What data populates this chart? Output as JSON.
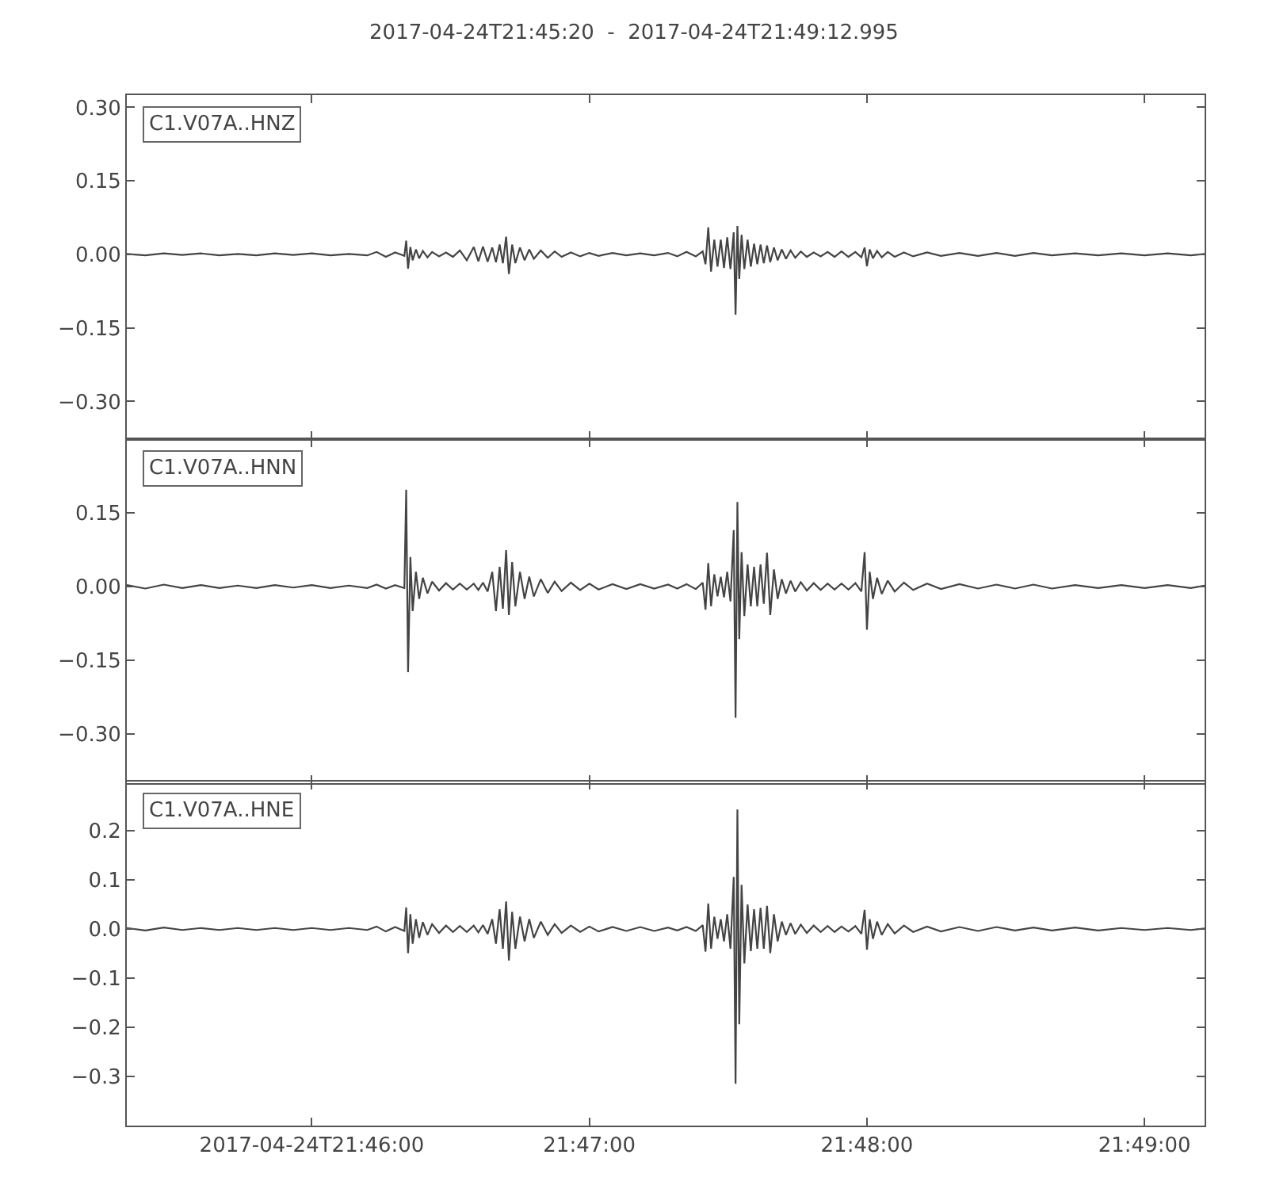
{
  "chart_data": [
    {
      "type": "line",
      "title": "2017-04-24T21:45:20  -  2017-04-24T21:49:12.995",
      "annotations": [
        "C1.V07A..HNZ"
      ],
      "x": [
        "2017-04-24T21:45:20",
        "2017-04-24T21:45:24",
        "2017-04-24T21:45:28",
        "2017-04-24T21:45:32",
        "2017-04-24T21:45:36",
        "2017-04-24T21:45:40",
        "2017-04-24T21:45:44",
        "2017-04-24T21:45:48",
        "2017-04-24T21:45:52",
        "2017-04-24T21:45:56",
        "2017-04-24T21:46:00",
        "2017-04-24T21:46:04",
        "2017-04-24T21:46:08",
        "2017-04-24T21:46:12",
        "2017-04-24T21:46:14",
        "2017-04-24T21:46:16",
        "2017-04-24T21:46:18",
        "2017-04-24T21:46:20",
        "2017-04-24T21:46:20.4",
        "2017-04-24T21:46:20.8",
        "2017-04-24T21:46:21.3",
        "2017-04-24T21:46:21.8",
        "2017-04-24T21:46:22.5",
        "2017-04-24T21:46:23.2",
        "2017-04-24T21:46:24",
        "2017-04-24T21:46:25",
        "2017-04-24T21:46:26",
        "2017-04-24T21:46:27.5",
        "2017-04-24T21:46:29",
        "2017-04-24T21:46:30.5",
        "2017-04-24T21:46:32",
        "2017-04-24T21:46:33.5",
        "2017-04-24T21:46:35",
        "2017-04-24T21:46:36",
        "2017-04-24T21:46:37",
        "2017-04-24T21:46:38",
        "2017-04-24T21:46:39",
        "2017-04-24T21:46:39.8",
        "2017-04-24T21:46:40.6",
        "2017-04-24T21:46:41.3",
        "2017-04-24T21:46:42",
        "2017-04-24T21:46:42.6",
        "2017-04-24T21:46:43.3",
        "2017-04-24T21:46:44",
        "2017-04-24T21:46:45",
        "2017-04-24T21:46:46",
        "2017-04-24T21:46:47",
        "2017-04-24T21:46:48",
        "2017-04-24T21:46:49.5",
        "2017-04-24T21:46:51",
        "2017-04-24T21:46:52.5",
        "2017-04-24T21:46:54",
        "2017-04-24T21:46:56",
        "2017-04-24T21:46:58",
        "2017-04-24T21:47:00",
        "2017-04-24T21:47:02",
        "2017-04-24T21:47:05",
        "2017-04-24T21:47:08",
        "2017-04-24T21:47:11",
        "2017-04-24T21:47:14",
        "2017-04-24T21:47:17",
        "2017-04-24T21:47:19",
        "2017-04-24T21:47:21",
        "2017-04-24T21:47:23",
        "2017-04-24T21:47:24.5",
        "2017-04-24T21:47:25.1",
        "2017-04-24T21:47:25.7",
        "2017-04-24T21:47:26.3",
        "2017-04-24T21:47:27",
        "2017-04-24T21:47:27.7",
        "2017-04-24T21:47:28.4",
        "2017-04-24T21:47:29.1",
        "2017-04-24T21:47:29.8",
        "2017-04-24T21:47:30.5",
        "2017-04-24T21:47:31.2",
        "2017-04-24T21:47:31.6",
        "2017-04-24T21:47:32",
        "2017-04-24T21:47:32.4",
        "2017-04-24T21:47:32.9",
        "2017-04-24T21:47:33.5",
        "2017-04-24T21:47:34.2",
        "2017-04-24T21:47:34.9",
        "2017-04-24T21:47:35.6",
        "2017-04-24T21:47:36.3",
        "2017-04-24T21:47:37",
        "2017-04-24T21:47:37.7",
        "2017-04-24T21:47:38.4",
        "2017-04-24T21:47:39.1",
        "2017-04-24T21:47:39.9",
        "2017-04-24T21:47:40.7",
        "2017-04-24T21:47:41.6",
        "2017-04-24T21:47:42.5",
        "2017-04-24T21:47:43.5",
        "2017-04-24T21:47:44.5",
        "2017-04-24T21:47:45.7",
        "2017-04-24T21:47:47",
        "2017-04-24T21:47:48.5",
        "2017-04-24T21:47:50",
        "2017-04-24T21:47:51.5",
        "2017-04-24T21:47:53",
        "2017-04-24T21:47:54.5",
        "2017-04-24T21:47:56",
        "2017-04-24T21:47:57.5",
        "2017-04-24T21:47:58.8",
        "2017-04-24T21:47:59.5",
        "2017-04-24T21:48:00",
        "2017-04-24T21:48:00.6",
        "2017-04-24T21:48:01.3",
        "2017-04-24T21:48:02.2",
        "2017-04-24T21:48:03.2",
        "2017-04-24T21:48:04.5",
        "2017-04-24T21:48:06",
        "2017-04-24T21:48:08",
        "2017-04-24T21:48:10",
        "2017-04-24T21:48:13",
        "2017-04-24T21:48:16",
        "2017-04-24T21:48:20",
        "2017-04-24T21:48:24",
        "2017-04-24T21:48:28",
        "2017-04-24T21:48:32",
        "2017-04-24T21:48:36",
        "2017-04-24T21:48:40",
        "2017-04-24T21:48:45",
        "2017-04-24T21:48:50",
        "2017-04-24T21:48:55",
        "2017-04-24T21:49:00",
        "2017-04-24T21:49:05",
        "2017-04-24T21:49:10",
        "2017-04-24T21:49:12.995"
      ],
      "series": [
        {
          "color": "#444444",
          "values": [
            0.001,
            -0.002,
            0.002,
            -0.001,
            0.002,
            -0.002,
            0.001,
            -0.002,
            0.002,
            -0.001,
            0.002,
            -0.002,
            0.001,
            -0.002,
            0.005,
            -0.005,
            0.004,
            -0.003,
            0.028,
            -0.029,
            0.015,
            -0.012,
            0.01,
            -0.008,
            0.007,
            -0.006,
            0.005,
            -0.004,
            0.004,
            -0.005,
            0.008,
            -0.012,
            0.015,
            -0.014,
            0.016,
            -0.015,
            0.014,
            -0.016,
            0.02,
            -0.018,
            0.036,
            -0.04,
            0.02,
            -0.018,
            0.014,
            -0.012,
            0.01,
            -0.009,
            0.008,
            -0.007,
            0.006,
            -0.005,
            0.004,
            -0.004,
            0.003,
            -0.003,
            0.003,
            -0.002,
            0.002,
            -0.002,
            0.003,
            -0.004,
            0.005,
            -0.004,
            0.006,
            -0.02,
            0.055,
            -0.035,
            0.03,
            -0.025,
            0.03,
            -0.028,
            0.035,
            -0.03,
            0.045,
            -0.123,
            0.058,
            -0.05,
            0.04,
            -0.03,
            0.03,
            -0.025,
            0.022,
            -0.02,
            0.02,
            -0.018,
            0.018,
            -0.016,
            0.014,
            -0.012,
            0.01,
            -0.009,
            0.008,
            -0.007,
            0.006,
            -0.005,
            0.004,
            -0.004,
            0.005,
            -0.005,
            0.006,
            -0.005,
            0.005,
            -0.006,
            0.014,
            -0.024,
            0.01,
            -0.008,
            0.007,
            -0.006,
            0.005,
            -0.005,
            0.004,
            -0.004,
            0.004,
            -0.003,
            0.003,
            -0.003,
            0.003,
            -0.003,
            0.003,
            -0.002,
            0.002,
            -0.002,
            0.002,
            -0.002,
            0.002,
            -0.002,
            0.001
          ]
        }
      ],
      "xlim": [
        "2017-04-24T21:45:20",
        "2017-04-24T21:49:12.995"
      ],
      "xticks": [
        {
          "value": "2017-04-24T21:46:00",
          "label": null
        },
        {
          "value": "2017-04-24T21:47:00",
          "label": null
        },
        {
          "value": "2017-04-24T21:48:00",
          "label": null
        },
        {
          "value": "2017-04-24T21:49:00",
          "label": null
        }
      ],
      "ylim": [
        -0.377,
        0.325
      ],
      "yticks": [
        {
          "value": 0.3,
          "label": "0.30"
        },
        {
          "value": 0.15,
          "label": "0.15"
        },
        {
          "value": 0,
          "label": "0.00"
        },
        {
          "value": -0.15,
          "label": "−0.15"
        },
        {
          "value": -0.3,
          "label": "−0.30"
        }
      ],
      "tick_labels": "y"
    },
    {
      "type": "line",
      "annotations": [
        "C1.V07A..HNN"
      ],
      "x": [
        "2017-04-24T21:45:20",
        "2017-04-24T21:45:24",
        "2017-04-24T21:45:28",
        "2017-04-24T21:45:32",
        "2017-04-24T21:45:36",
        "2017-04-24T21:45:40",
        "2017-04-24T21:45:44",
        "2017-04-24T21:45:48",
        "2017-04-24T21:45:52",
        "2017-04-24T21:45:56",
        "2017-04-24T21:46:00",
        "2017-04-24T21:46:04",
        "2017-04-24T21:46:08",
        "2017-04-24T21:46:12",
        "2017-04-24T21:46:14",
        "2017-04-24T21:46:16",
        "2017-04-24T21:46:18",
        "2017-04-24T21:46:20",
        "2017-04-24T21:46:20.4",
        "2017-04-24T21:46:20.8",
        "2017-04-24T21:46:21.3",
        "2017-04-24T21:46:21.8",
        "2017-04-24T21:46:22.5",
        "2017-04-24T21:46:23.2",
        "2017-04-24T21:46:24",
        "2017-04-24T21:46:25",
        "2017-04-24T21:46:26",
        "2017-04-24T21:46:27.5",
        "2017-04-24T21:46:29",
        "2017-04-24T21:46:30.5",
        "2017-04-24T21:46:32",
        "2017-04-24T21:46:33.5",
        "2017-04-24T21:46:35",
        "2017-04-24T21:46:36",
        "2017-04-24T21:46:37",
        "2017-04-24T21:46:38",
        "2017-04-24T21:46:39",
        "2017-04-24T21:46:39.8",
        "2017-04-24T21:46:40.6",
        "2017-04-24T21:46:41.3",
        "2017-04-24T21:46:42",
        "2017-04-24T21:46:42.6",
        "2017-04-24T21:46:43.3",
        "2017-04-24T21:46:44",
        "2017-04-24T21:46:45",
        "2017-04-24T21:46:46",
        "2017-04-24T21:46:47",
        "2017-04-24T21:46:48",
        "2017-04-24T21:46:49.5",
        "2017-04-24T21:46:51",
        "2017-04-24T21:46:52.5",
        "2017-04-24T21:46:54",
        "2017-04-24T21:46:56",
        "2017-04-24T21:46:58",
        "2017-04-24T21:47:00",
        "2017-04-24T21:47:02",
        "2017-04-24T21:47:05",
        "2017-04-24T21:47:08",
        "2017-04-24T21:47:11",
        "2017-04-24T21:47:14",
        "2017-04-24T21:47:17",
        "2017-04-24T21:47:19",
        "2017-04-24T21:47:21",
        "2017-04-24T21:47:23",
        "2017-04-24T21:47:24.5",
        "2017-04-24T21:47:25.1",
        "2017-04-24T21:47:25.7",
        "2017-04-24T21:47:26.3",
        "2017-04-24T21:47:27",
        "2017-04-24T21:47:27.7",
        "2017-04-24T21:47:28.4",
        "2017-04-24T21:47:29.1",
        "2017-04-24T21:47:29.8",
        "2017-04-24T21:47:30.5",
        "2017-04-24T21:47:31.2",
        "2017-04-24T21:47:31.6",
        "2017-04-24T21:47:32",
        "2017-04-24T21:47:32.4",
        "2017-04-24T21:47:32.9",
        "2017-04-24T21:47:33.5",
        "2017-04-24T21:47:34.2",
        "2017-04-24T21:47:34.9",
        "2017-04-24T21:47:35.6",
        "2017-04-24T21:47:36.3",
        "2017-04-24T21:47:37",
        "2017-04-24T21:47:37.7",
        "2017-04-24T21:47:38.4",
        "2017-04-24T21:47:39.1",
        "2017-04-24T21:47:39.9",
        "2017-04-24T21:47:40.7",
        "2017-04-24T21:47:41.6",
        "2017-04-24T21:47:42.5",
        "2017-04-24T21:47:43.5",
        "2017-04-24T21:47:44.5",
        "2017-04-24T21:47:45.7",
        "2017-04-24T21:47:47",
        "2017-04-24T21:47:48.5",
        "2017-04-24T21:47:50",
        "2017-04-24T21:47:51.5",
        "2017-04-24T21:47:53",
        "2017-04-24T21:47:54.5",
        "2017-04-24T21:47:56",
        "2017-04-24T21:47:57.5",
        "2017-04-24T21:47:58.8",
        "2017-04-24T21:47:59.5",
        "2017-04-24T21:48:00",
        "2017-04-24T21:48:00.6",
        "2017-04-24T21:48:01.3",
        "2017-04-24T21:48:02.2",
        "2017-04-24T21:48:03.2",
        "2017-04-24T21:48:04.5",
        "2017-04-24T21:48:06",
        "2017-04-24T21:48:08",
        "2017-04-24T21:48:10",
        "2017-04-24T21:48:13",
        "2017-04-24T21:48:16",
        "2017-04-24T21:48:20",
        "2017-04-24T21:48:24",
        "2017-04-24T21:48:28",
        "2017-04-24T21:48:32",
        "2017-04-24T21:48:36",
        "2017-04-24T21:48:40",
        "2017-04-24T21:48:45",
        "2017-04-24T21:48:50",
        "2017-04-24T21:48:55",
        "2017-04-24T21:49:00",
        "2017-04-24T21:49:05",
        "2017-04-24T21:49:10",
        "2017-04-24T21:49:12.995"
      ],
      "series": [
        {
          "color": "#444444",
          "values": [
            0.003,
            -0.004,
            0.004,
            -0.003,
            0.003,
            -0.003,
            0.002,
            -0.003,
            0.003,
            -0.002,
            0.003,
            -0.003,
            0.002,
            -0.003,
            0.004,
            -0.004,
            0.003,
            -0.003,
            0.197,
            -0.174,
            0.06,
            -0.05,
            0.03,
            -0.025,
            0.018,
            -0.014,
            0.01,
            -0.008,
            0.007,
            -0.006,
            0.006,
            -0.006,
            0.006,
            -0.007,
            0.008,
            -0.01,
            0.03,
            -0.05,
            0.04,
            -0.045,
            0.074,
            -0.058,
            0.05,
            -0.04,
            0.03,
            -0.025,
            0.02,
            -0.02,
            0.015,
            -0.013,
            0.01,
            -0.009,
            0.008,
            -0.007,
            0.006,
            -0.006,
            0.005,
            -0.005,
            0.005,
            -0.004,
            0.004,
            -0.004,
            0.005,
            -0.005,
            0.008,
            -0.047,
            0.048,
            -0.04,
            0.025,
            -0.02,
            0.02,
            -0.022,
            0.03,
            -0.03,
            0.115,
            -0.267,
            0.172,
            -0.107,
            0.07,
            -0.06,
            0.045,
            -0.04,
            0.04,
            -0.04,
            0.045,
            -0.035,
            0.069,
            -0.058,
            0.035,
            -0.025,
            0.015,
            -0.014,
            0.012,
            -0.01,
            0.009,
            -0.008,
            0.007,
            -0.007,
            0.006,
            -0.006,
            0.006,
            -0.006,
            0.007,
            -0.01,
            0.07,
            -0.088,
            0.03,
            -0.025,
            0.018,
            -0.015,
            0.012,
            -0.01,
            0.008,
            -0.007,
            0.006,
            -0.005,
            0.005,
            -0.004,
            0.004,
            -0.004,
            0.004,
            -0.004,
            0.003,
            -0.003,
            0.003,
            -0.003,
            0.003,
            -0.003,
            0.002
          ]
        }
      ],
      "xlim": [
        "2017-04-24T21:45:20",
        "2017-04-24T21:49:12.995"
      ],
      "xticks": [
        {
          "value": "2017-04-24T21:46:00",
          "label": null
        },
        {
          "value": "2017-04-24T21:47:00",
          "label": null
        },
        {
          "value": "2017-04-24T21:48:00",
          "label": null
        },
        {
          "value": "2017-04-24T21:49:00",
          "label": null
        }
      ],
      "ylim": [
        -0.4,
        0.3
      ],
      "yticks": [
        {
          "value": 0.15,
          "label": "0.15"
        },
        {
          "value": 0,
          "label": "0.00"
        },
        {
          "value": -0.15,
          "label": "−0.15"
        },
        {
          "value": -0.3,
          "label": "−0.30"
        }
      ],
      "tick_labels": "y"
    },
    {
      "type": "line",
      "annotations": [
        "C1.V07A..HNE"
      ],
      "x": [
        "2017-04-24T21:45:20",
        "2017-04-24T21:45:24",
        "2017-04-24T21:45:28",
        "2017-04-24T21:45:32",
        "2017-04-24T21:45:36",
        "2017-04-24T21:45:40",
        "2017-04-24T21:45:44",
        "2017-04-24T21:45:48",
        "2017-04-24T21:45:52",
        "2017-04-24T21:45:56",
        "2017-04-24T21:46:00",
        "2017-04-24T21:46:04",
        "2017-04-24T21:46:08",
        "2017-04-24T21:46:12",
        "2017-04-24T21:46:14",
        "2017-04-24T21:46:16",
        "2017-04-24T21:46:18",
        "2017-04-24T21:46:20",
        "2017-04-24T21:46:20.4",
        "2017-04-24T21:46:20.8",
        "2017-04-24T21:46:21.3",
        "2017-04-24T21:46:21.8",
        "2017-04-24T21:46:22.5",
        "2017-04-24T21:46:23.2",
        "2017-04-24T21:46:24",
        "2017-04-24T21:46:25",
        "2017-04-24T21:46:26",
        "2017-04-24T21:46:27.5",
        "2017-04-24T21:46:29",
        "2017-04-24T21:46:30.5",
        "2017-04-24T21:46:32",
        "2017-04-24T21:46:33.5",
        "2017-04-24T21:46:35",
        "2017-04-24T21:46:36",
        "2017-04-24T21:46:37",
        "2017-04-24T21:46:38",
        "2017-04-24T21:46:39",
        "2017-04-24T21:46:39.8",
        "2017-04-24T21:46:40.6",
        "2017-04-24T21:46:41.3",
        "2017-04-24T21:46:42",
        "2017-04-24T21:46:42.6",
        "2017-04-24T21:46:43.3",
        "2017-04-24T21:46:44",
        "2017-04-24T21:46:45",
        "2017-04-24T21:46:46",
        "2017-04-24T21:46:47",
        "2017-04-24T21:46:48",
        "2017-04-24T21:46:49.5",
        "2017-04-24T21:46:51",
        "2017-04-24T21:46:52.5",
        "2017-04-24T21:46:54",
        "2017-04-24T21:46:56",
        "2017-04-24T21:46:58",
        "2017-04-24T21:47:00",
        "2017-04-24T21:47:02",
        "2017-04-24T21:47:05",
        "2017-04-24T21:47:08",
        "2017-04-24T21:47:11",
        "2017-04-24T21:47:14",
        "2017-04-24T21:47:17",
        "2017-04-24T21:47:19",
        "2017-04-24T21:47:21",
        "2017-04-24T21:47:23",
        "2017-04-24T21:47:24.5",
        "2017-04-24T21:47:25.1",
        "2017-04-24T21:47:25.7",
        "2017-04-24T21:47:26.3",
        "2017-04-24T21:47:27",
        "2017-04-24T21:47:27.7",
        "2017-04-24T21:47:28.4",
        "2017-04-24T21:47:29.1",
        "2017-04-24T21:47:29.8",
        "2017-04-24T21:47:30.5",
        "2017-04-24T21:47:31.2",
        "2017-04-24T21:47:31.6",
        "2017-04-24T21:47:32",
        "2017-04-24T21:47:32.4",
        "2017-04-24T21:47:32.9",
        "2017-04-24T21:47:33.5",
        "2017-04-24T21:47:34.2",
        "2017-04-24T21:47:34.9",
        "2017-04-24T21:47:35.6",
        "2017-04-24T21:47:36.3",
        "2017-04-24T21:47:37",
        "2017-04-24T21:47:37.7",
        "2017-04-24T21:47:38.4",
        "2017-04-24T21:47:39.1",
        "2017-04-24T21:47:39.9",
        "2017-04-24T21:47:40.7",
        "2017-04-24T21:47:41.6",
        "2017-04-24T21:47:42.5",
        "2017-04-24T21:47:43.5",
        "2017-04-24T21:47:44.5",
        "2017-04-24T21:47:45.7",
        "2017-04-24T21:47:47",
        "2017-04-24T21:47:48.5",
        "2017-04-24T21:47:50",
        "2017-04-24T21:47:51.5",
        "2017-04-24T21:47:53",
        "2017-04-24T21:47:54.5",
        "2017-04-24T21:47:56",
        "2017-04-24T21:47:57.5",
        "2017-04-24T21:47:58.8",
        "2017-04-24T21:47:59.5",
        "2017-04-24T21:48:00",
        "2017-04-24T21:48:00.6",
        "2017-04-24T21:48:01.3",
        "2017-04-24T21:48:02.2",
        "2017-04-24T21:48:03.2",
        "2017-04-24T21:48:04.5",
        "2017-04-24T21:48:06",
        "2017-04-24T21:48:08",
        "2017-04-24T21:48:10",
        "2017-04-24T21:48:13",
        "2017-04-24T21:48:16",
        "2017-04-24T21:48:20",
        "2017-04-24T21:48:24",
        "2017-04-24T21:48:28",
        "2017-04-24T21:48:32",
        "2017-04-24T21:48:36",
        "2017-04-24T21:48:40",
        "2017-04-24T21:48:45",
        "2017-04-24T21:48:50",
        "2017-04-24T21:48:55",
        "2017-04-24T21:49:00",
        "2017-04-24T21:49:05",
        "2017-04-24T21:49:10",
        "2017-04-24T21:49:12.995"
      ],
      "series": [
        {
          "color": "#444444",
          "values": [
            0.002,
            -0.003,
            0.003,
            -0.002,
            0.002,
            -0.002,
            0.002,
            -0.002,
            0.002,
            -0.002,
            0.002,
            -0.002,
            0.002,
            -0.002,
            0.005,
            -0.005,
            0.004,
            -0.004,
            0.044,
            -0.049,
            0.03,
            -0.03,
            0.02,
            -0.018,
            0.014,
            -0.012,
            0.01,
            -0.008,
            0.007,
            -0.006,
            0.006,
            -0.006,
            0.007,
            -0.007,
            0.008,
            -0.01,
            0.02,
            -0.03,
            0.04,
            -0.04,
            0.056,
            -0.064,
            0.035,
            -0.04,
            0.025,
            -0.025,
            0.02,
            -0.018,
            0.015,
            -0.012,
            0.01,
            -0.008,
            0.007,
            -0.006,
            0.005,
            -0.005,
            0.004,
            -0.004,
            0.004,
            -0.004,
            0.003,
            -0.003,
            0.004,
            -0.004,
            0.008,
            -0.046,
            0.052,
            -0.04,
            0.025,
            -0.02,
            0.02,
            -0.025,
            0.03,
            -0.04,
            0.106,
            -0.315,
            0.243,
            -0.194,
            0.09,
            -0.07,
            0.05,
            -0.045,
            0.04,
            -0.04,
            0.043,
            -0.04,
            0.047,
            -0.049,
            0.03,
            -0.025,
            0.015,
            -0.012,
            0.012,
            -0.01,
            0.009,
            -0.008,
            0.007,
            -0.006,
            0.006,
            -0.006,
            0.005,
            -0.005,
            0.006,
            -0.01,
            0.039,
            -0.042,
            0.02,
            -0.02,
            0.015,
            -0.012,
            0.01,
            -0.009,
            0.007,
            -0.006,
            0.005,
            -0.005,
            0.004,
            -0.004,
            0.004,
            -0.003,
            0.003,
            -0.003,
            0.003,
            -0.003,
            0.002,
            -0.002,
            0.002,
            -0.002,
            0.001
          ]
        }
      ],
      "xlim": [
        "2017-04-24T21:45:20",
        "2017-04-24T21:49:12.995"
      ],
      "xticks": [
        {
          "value": "2017-04-24T21:46:00",
          "label": "2017-04-24T21:46:00"
        },
        {
          "value": "2017-04-24T21:47:00",
          "label": "21:47:00"
        },
        {
          "value": "2017-04-24T21:48:00",
          "label": "21:48:00"
        },
        {
          "value": "2017-04-24T21:49:00",
          "label": "21:49:00"
        }
      ],
      "ylim": [
        -0.4,
        0.3
      ],
      "yticks": [
        {
          "value": 0.2,
          "label": "0.2"
        },
        {
          "value": 0.1,
          "label": "0.1"
        },
        {
          "value": 0,
          "label": "0.0"
        },
        {
          "value": -0.1,
          "label": "−0.1"
        },
        {
          "value": -0.2,
          "label": "−0.2"
        },
        {
          "value": -0.3,
          "label": "−0.3"
        }
      ]
    }
  ]
}
